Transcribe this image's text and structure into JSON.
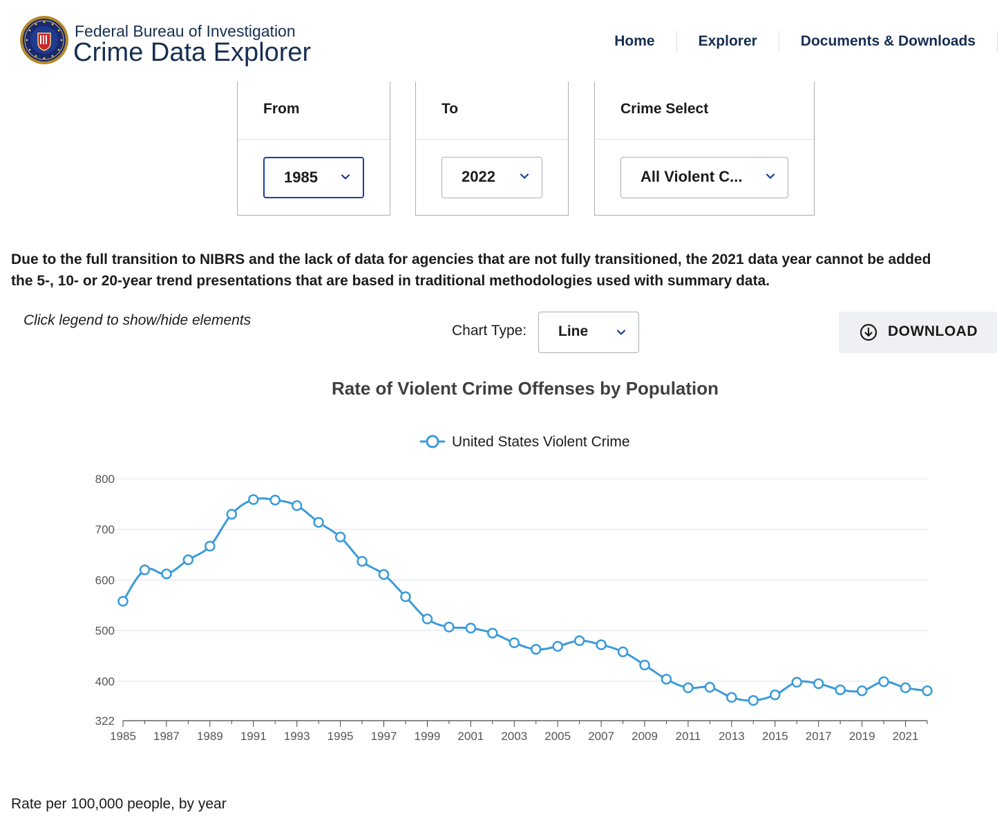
{
  "header": {
    "agency": "Federal Bureau of Investigation",
    "product": "Crime Data Explorer",
    "nav": [
      "Home",
      "Explorer",
      "Documents & Downloads"
    ]
  },
  "filters": {
    "from": {
      "label": "From",
      "value": "1985"
    },
    "to": {
      "label": "To",
      "value": "2022"
    },
    "crime": {
      "label": "Crime Select",
      "value": "All Violent C..."
    }
  },
  "notice": {
    "line1": "Due to the full transition to NIBRS and the lack of data for agencies that are not fully transitioned, the 2021 data year cannot be added",
    "line2": "the 5-, 10- or 20-year trend presentations that are based in traditional methodologies used with summary data."
  },
  "controls": {
    "hint": "Click legend to show/hide elements",
    "chart_type_label": "Chart Type:",
    "chart_type_value": "Line",
    "download_label": "DOWNLOAD"
  },
  "footnote": "Rate per 100,000 people, by year",
  "colors": {
    "series": "#3a9ad9",
    "navy": "#162e51",
    "accent": "#1a3d9e"
  },
  "chart_data": {
    "type": "line",
    "title": "Rate of Violent Crime Offenses by Population",
    "legend": "top-center",
    "grid": true,
    "ylim": [
      322,
      800
    ],
    "yticks": [
      322,
      400,
      500,
      600,
      700,
      800
    ],
    "x": [
      1985,
      1986,
      1987,
      1988,
      1989,
      1990,
      1991,
      1992,
      1993,
      1994,
      1995,
      1996,
      1997,
      1998,
      1999,
      2000,
      2001,
      2002,
      2003,
      2004,
      2005,
      2006,
      2007,
      2008,
      2009,
      2010,
      2011,
      2012,
      2013,
      2014,
      2015,
      2016,
      2017,
      2018,
      2019,
      2020,
      2021,
      2022
    ],
    "xticks": [
      1985,
      1987,
      1989,
      1991,
      1993,
      1995,
      1997,
      1999,
      2001,
      2003,
      2005,
      2007,
      2009,
      2011,
      2013,
      2015,
      2017,
      2019,
      2021
    ],
    "series": [
      {
        "name": "United States Violent Crime",
        "values": [
          558,
          620,
          612,
          640,
          667,
          730,
          759,
          758,
          747,
          714,
          685,
          637,
          611,
          567,
          523,
          507,
          505,
          495,
          476,
          463,
          469,
          480,
          472,
          458,
          432,
          404,
          387,
          388,
          368,
          362,
          373,
          398,
          395,
          383,
          381,
          399,
          387,
          381
        ]
      }
    ]
  }
}
